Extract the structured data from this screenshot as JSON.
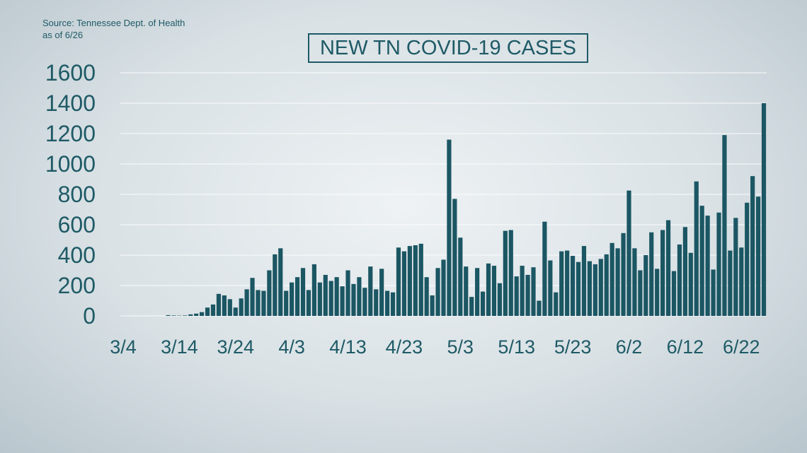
{
  "source": {
    "line1": "Source: Tennessee Dept. of Health",
    "line2": "as of 6/26"
  },
  "colors": {
    "bar": "#1b5663",
    "text": "#1e5a66",
    "grid": "#ffffff"
  },
  "chart_data": {
    "type": "bar",
    "title": "NEW TN COVID-19 CASES",
    "xlabel": "",
    "ylabel": "",
    "ylim": [
      0,
      1600
    ],
    "yticks": [
      0,
      200,
      400,
      600,
      800,
      1000,
      1200,
      1400,
      1600
    ],
    "xtick_labels": [
      "3/4",
      "3/14",
      "3/24",
      "4/3",
      "4/13",
      "4/23",
      "5/3",
      "5/13",
      "5/23",
      "6/2",
      "6/12",
      "6/22"
    ],
    "grid": "horizontal",
    "start_date": "3/4",
    "values": [
      0,
      0,
      0,
      0,
      0,
      0,
      0,
      0,
      5,
      3,
      2,
      3,
      10,
      15,
      25,
      55,
      75,
      145,
      135,
      110,
      55,
      115,
      175,
      250,
      170,
      165,
      300,
      405,
      445,
      165,
      220,
      255,
      315,
      170,
      340,
      220,
      270,
      230,
      255,
      195,
      300,
      210,
      255,
      185,
      325,
      175,
      310,
      165,
      155,
      450,
      425,
      460,
      465,
      475,
      255,
      135,
      315,
      370,
      1160,
      770,
      515,
      325,
      125,
      315,
      160,
      345,
      330,
      215,
      560,
      565,
      260,
      330,
      270,
      320,
      100,
      620,
      365,
      155,
      425,
      430,
      395,
      355,
      460,
      360,
      340,
      375,
      405,
      480,
      445,
      545,
      825,
      445,
      300,
      400,
      550,
      310,
      565,
      630,
      295,
      470,
      585,
      415,
      885,
      725,
      660,
      305,
      680,
      1190,
      430,
      645,
      450,
      745,
      920,
      785,
      1400
    ]
  }
}
